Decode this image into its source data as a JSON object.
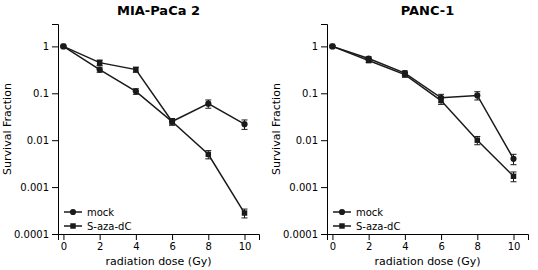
{
  "chart_data": [
    {
      "type": "line",
      "title": "MIA-PaCa 2",
      "xlabel": "radiation dose (Gy)",
      "ylabel": "Survival Fraction",
      "x": [
        0,
        2,
        4,
        6,
        8,
        10
      ],
      "series": [
        {
          "name": "mock",
          "color": "#1a1a1a",
          "marker": "circle",
          "line_style": "solid",
          "values": [
            1.0,
            0.32,
            0.11,
            0.025,
            0.06,
            0.022
          ],
          "errors": [
            0.03,
            0.04,
            0.015,
            0.004,
            0.012,
            0.005
          ]
        },
        {
          "name": "S-aza-dC",
          "color": "#1a1a1a",
          "marker": "square",
          "line_style": "solid",
          "values": [
            1.0,
            0.45,
            0.32,
            0.025,
            0.005,
            0.00028
          ],
          "errors": [
            0.04,
            0.06,
            0.04,
            0.004,
            0.001,
            6e-05
          ]
        }
      ],
      "log": "y",
      "xlim": [
        -0.3,
        10.8
      ],
      "ylim": [
        0.0001,
        3.0
      ],
      "xticks": [
        0,
        2,
        4,
        6,
        8,
        10
      ],
      "yticks": [
        0.0001,
        0.001,
        0.01,
        0.1,
        1
      ],
      "grid": false,
      "legend": "lower left"
    },
    {
      "type": "line",
      "title": "PANC-1",
      "xlabel": "radiation dose (Gy)",
      "ylabel": "Survival Fraction",
      "x": [
        0,
        2,
        4,
        6,
        8,
        10
      ],
      "series": [
        {
          "name": "mock",
          "color": "#1a1a1a",
          "marker": "circle",
          "line_style": "solid",
          "values": [
            1.0,
            0.55,
            0.27,
            0.08,
            0.09,
            0.004
          ],
          "errors": [
            0.04,
            0.05,
            0.03,
            0.015,
            0.018,
            0.001
          ]
        },
        {
          "name": "S-aza-dC",
          "color": "#1a1a1a",
          "marker": "square",
          "line_style": "solid",
          "values": [
            1.0,
            0.5,
            0.25,
            0.07,
            0.01,
            0.0017
          ],
          "errors": [
            0.04,
            0.05,
            0.03,
            0.012,
            0.002,
            0.0004
          ]
        }
      ],
      "log": "y",
      "xlim": [
        -0.3,
        10.8
      ],
      "ylim": [
        0.0001,
        3.0
      ],
      "xticks": [
        0,
        2,
        4,
        6,
        8,
        10
      ],
      "yticks": [
        0.0001,
        0.001,
        0.01,
        0.1,
        1
      ],
      "grid": false,
      "legend": "lower left"
    }
  ]
}
